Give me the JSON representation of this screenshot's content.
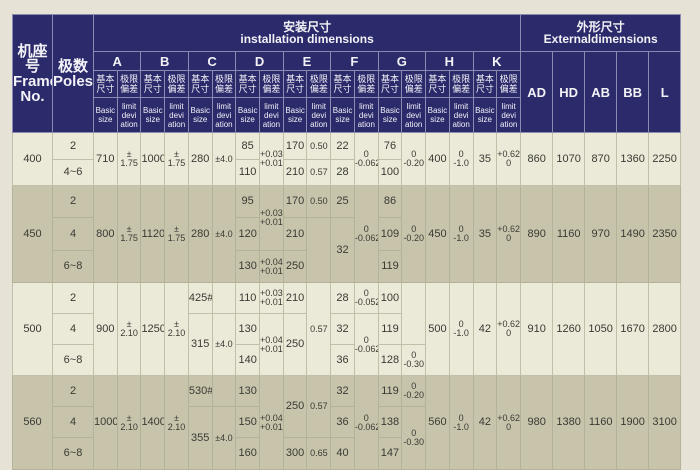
{
  "header": {
    "frame_label": "机座号\nFrame\nNo.",
    "poles_label": "极数\nPoles",
    "installation_title": "安装尺寸\ninstallation dimensions",
    "external_title": "外形尺寸\nExternaldimensions",
    "install_columns": [
      "A",
      "B",
      "C",
      "D",
      "E",
      "F",
      "G",
      "H",
      "K"
    ],
    "basic_cn": "基本\n尺寸",
    "limit_cn": "极限\n偏差",
    "basic_en": "Basic\nsize",
    "limit_en": "limit\ndevi\nation",
    "external_columns": [
      "AD",
      "HD",
      "AB",
      "BB",
      "L"
    ]
  },
  "frames": [
    {
      "frame": "400",
      "poles": [
        "2",
        "4~6"
      ],
      "A": [
        "710"
      ],
      "A_tol": [
        "±\n1.75"
      ],
      "B": [
        "1000"
      ],
      "B_tol": [
        "±\n1.75"
      ],
      "C": [
        "280"
      ],
      "C_tol": [
        "±4.0"
      ],
      "D": [
        "85",
        "110"
      ],
      "D_tol": [
        "+0.035\n+0.013",
        "+0.035\n+0.013"
      ],
      "E": [
        "170",
        "210"
      ],
      "E_tol": [
        "0.50",
        "0.57"
      ],
      "F": [
        "22",
        "28"
      ],
      "F_tol": [
        "0\n-0.062",
        "0\n-0.062"
      ],
      "G": [
        "76",
        "100"
      ],
      "G_tol": [
        "0\n-0.20",
        "0\n-0.20"
      ],
      "H": [
        "400"
      ],
      "H_tol": [
        "0\n-1.0"
      ],
      "K": [
        "35"
      ],
      "K_tol": [
        "+0.62\n0"
      ],
      "AD": [
        "860"
      ],
      "HD": [
        "1070"
      ],
      "AB": [
        "870"
      ],
      "BB": [
        "1360"
      ],
      "L": [
        "2250"
      ]
    },
    {
      "frame": "450",
      "poles": [
        "2",
        "4",
        "6~8"
      ],
      "A": [
        "800"
      ],
      "A_tol": [
        "±\n1.75"
      ],
      "B": [
        "1120"
      ],
      "B_tol": [
        "±\n1.75"
      ],
      "C": [
        "280"
      ],
      "C_tol": [
        "±4.0"
      ],
      "D": [
        "95",
        "120",
        "130"
      ],
      "D_tol": [
        "+0.035\n+0.013",
        "+0.035\n+0.013",
        "+0.040\n+0.015"
      ],
      "E": [
        "170",
        "210",
        "250"
      ],
      "E_tol": [
        "0.50",
        "",
        ""
      ],
      "F": [
        "25",
        "32",
        "32"
      ],
      "F_tol": [
        "0\n-0.062",
        "0\n-0.062",
        "0\n-0.062"
      ],
      "G": [
        "86",
        "109",
        "119"
      ],
      "G_tol": [
        "0\n-0.20",
        "0\n-0.20",
        "0\n-0.20"
      ],
      "H": [
        "450"
      ],
      "H_tol": [
        "0\n-1.0"
      ],
      "K": [
        "35"
      ],
      "K_tol": [
        "+0.62\n0"
      ],
      "AD": [
        "890"
      ],
      "HD": [
        "1160"
      ],
      "AB": [
        "970"
      ],
      "BB": [
        "1490"
      ],
      "L": [
        "2350"
      ]
    },
    {
      "frame": "500",
      "poles": [
        "2",
        "4",
        "6~8"
      ],
      "A": [
        "900"
      ],
      "A_tol": [
        "±\n2.10"
      ],
      "B": [
        "1250"
      ],
      "B_tol": [
        "±\n2.10"
      ],
      "C": [
        "425#",
        "315",
        "315"
      ],
      "C_tol": [
        "",
        "±4.0",
        "±4.0"
      ],
      "D": [
        "110",
        "130",
        "140"
      ],
      "D_tol": [
        "+0.035\n+0.013",
        "+0.040\n+0.015",
        "+0.040\n+0.015"
      ],
      "E": [
        "210",
        "250",
        "250"
      ],
      "E_tol": [
        "0.57",
        "0.57",
        "0.57"
      ],
      "F": [
        "28",
        "32",
        "36"
      ],
      "F_tol": [
        "0\n-0.052",
        "0\n-0.062",
        "0\n-0.062"
      ],
      "G": [
        "100",
        "119",
        "128"
      ],
      "G_tol": [
        "",
        "",
        "0\n-0.30"
      ],
      "H": [
        "500"
      ],
      "H_tol": [
        "0\n-1.0"
      ],
      "K": [
        "42"
      ],
      "K_tol": [
        "+0.62\n0"
      ],
      "AD": [
        "910"
      ],
      "HD": [
        "1260"
      ],
      "AB": [
        "1050"
      ],
      "BB": [
        "1670"
      ],
      "L": [
        "2800"
      ]
    },
    {
      "frame": "560",
      "poles": [
        "2",
        "4",
        "6~8"
      ],
      "A": [
        "1000"
      ],
      "A_tol": [
        "±\n2.10"
      ],
      "B": [
        "1400"
      ],
      "B_tol": [
        "±\n2.10"
      ],
      "C": [
        "530#",
        "355",
        "355"
      ],
      "C_tol": [
        "",
        "±4.0",
        "±4.0"
      ],
      "D": [
        "130",
        "150",
        "160"
      ],
      "D_tol": [
        "+0.040\n+0.015",
        "+0.040\n+0.015",
        "+0.040\n+0.015"
      ],
      "E": [
        "250",
        "250",
        "300"
      ],
      "E_tol": [
        "0.57",
        "0.57",
        "0.65"
      ],
      "F": [
        "32",
        "36",
        "40"
      ],
      "F_tol": [
        "0\n-0.062",
        "0\n-0.062",
        "0\n-0.062"
      ],
      "G": [
        "119",
        "138",
        "147"
      ],
      "G_tol": [
        "0\n-0.20",
        "0\n-0.30",
        "0\n-0.30"
      ],
      "H": [
        "560"
      ],
      "H_tol": [
        "0\n-1.0"
      ],
      "K": [
        "42"
      ],
      "K_tol": [
        "+0.62\n0"
      ],
      "AD": [
        "980"
      ],
      "HD": [
        "1380"
      ],
      "AB": [
        "1160"
      ],
      "BB": [
        "1900"
      ],
      "L": [
        "3100"
      ]
    }
  ],
  "colors": {
    "header_bg": "#2b2a6b",
    "row_light": "#ebe9d7",
    "row_dark": "#c7c4ab"
  }
}
